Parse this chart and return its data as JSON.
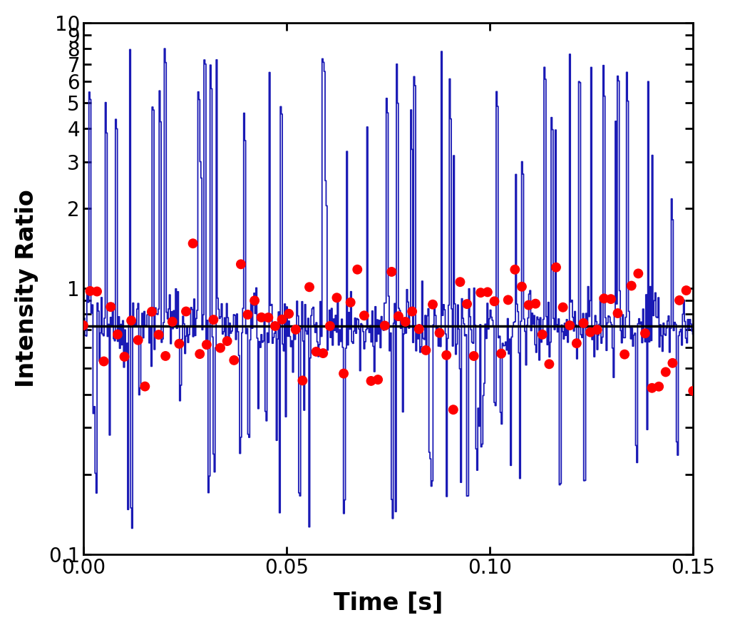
{
  "title": "",
  "xlabel": "Time [s]",
  "ylabel": "Intensity Ratio",
  "xlim": [
    0.0,
    0.15
  ],
  "ylim": [
    0.1,
    10
  ],
  "hline_value": 0.72,
  "hline_color": "#000000",
  "hline_lw": 2.5,
  "blue_line_color": "#1a1ab5",
  "blue_line_lw": 1.3,
  "red_dot_color": "#ff0000",
  "red_dot_size": 100,
  "seed": 12345,
  "n_blue": 600,
  "n_red": 90,
  "xlabel_fontsize": 24,
  "ylabel_fontsize": 24,
  "tick_fontsize": 20,
  "background_color": "#ffffff",
  "yticks_major": [
    0.1,
    0.2,
    0.3,
    0.4,
    0.5,
    0.6,
    0.7,
    0.8,
    0.9,
    1.0,
    2.0,
    3.0,
    4.0,
    5.0,
    6.0,
    7.0,
    8.0,
    9.0,
    10.0
  ],
  "ytick_labels": {
    "0.1": "0.1",
    "1.0": "1",
    "2.0": "2",
    "3.0": "3",
    "4.0": "4",
    "5.0": "5",
    "6.0": "6",
    "7.0": "7",
    "8.0": "8",
    "9.0": "9",
    "10.0": "10"
  }
}
